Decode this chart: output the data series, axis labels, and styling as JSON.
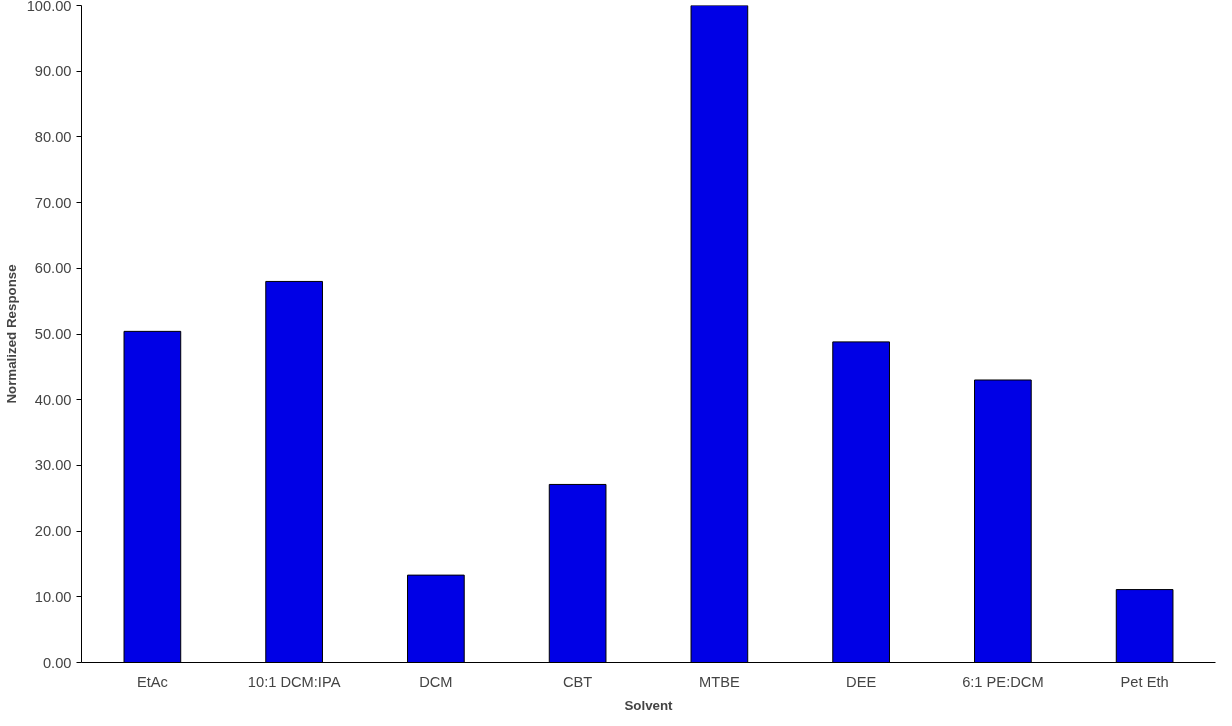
{
  "chart_data": {
    "type": "bar",
    "xlabel": "Solvent",
    "ylabel": "Normalized Response",
    "categories": [
      "EtAc",
      "10:1 DCM:IPA",
      "DCM",
      "CBT",
      "MTBE",
      "DEE",
      "6:1 PE:DCM",
      "Pet Eth"
    ],
    "values": [
      50.4,
      58.0,
      13.3,
      27.1,
      100.0,
      48.8,
      43.0,
      11.1
    ],
    "color": "#0000e6",
    "ylim": [
      0,
      100
    ],
    "yticks": [
      {
        "value": 0,
        "label": "0.00"
      },
      {
        "value": 10,
        "label": "10.00"
      },
      {
        "value": 20,
        "label": "20.00"
      },
      {
        "value": 30,
        "label": "30.00"
      },
      {
        "value": 40,
        "label": "40.00"
      },
      {
        "value": 50,
        "label": "50.00"
      },
      {
        "value": 60,
        "label": "60.00"
      },
      {
        "value": 70,
        "label": "70.00"
      },
      {
        "value": 80,
        "label": "80.00"
      },
      {
        "value": 90,
        "label": "90.00"
      },
      {
        "value": 100,
        "label": "100.00"
      }
    ],
    "grid": false
  }
}
